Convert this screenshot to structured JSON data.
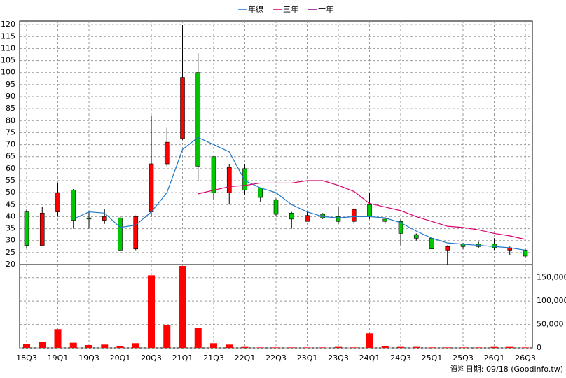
{
  "chart_data": [
    {
      "type": "candlestick",
      "categories": [
        "18Q3",
        null,
        "19Q1",
        null,
        "19Q3",
        null,
        "20Q1",
        null,
        "20Q3",
        null,
        "21Q1",
        null,
        "21Q3",
        null,
        "22Q1",
        null,
        "22Q3",
        null,
        "23Q1",
        null,
        "23Q3",
        null,
        "24Q1",
        null,
        "24Q3",
        null,
        "25Q1",
        null,
        "25Q3",
        null,
        "26Q1",
        null,
        "26Q3"
      ],
      "open": [
        42,
        28,
        42,
        51,
        39.5,
        38.5,
        39.5,
        26.5,
        42,
        62,
        72.5,
        100,
        65,
        50,
        60,
        52,
        47,
        41.5,
        38,
        41,
        40,
        38,
        45,
        39,
        38,
        32.5,
        31,
        26,
        28.5,
        28.5,
        28.5,
        26,
        26
      ],
      "high": [
        43,
        44,
        54,
        51.5,
        42,
        43,
        40,
        40.5,
        82,
        77,
        120,
        108,
        65,
        62,
        62,
        52,
        47.5,
        42,
        42,
        41.5,
        44,
        43.5,
        50,
        39.5,
        39,
        33,
        32,
        28,
        29,
        29.5,
        31,
        27.5,
        26.5
      ],
      "low": [
        27,
        28,
        40,
        35,
        35,
        37,
        21.5,
        26,
        40,
        61,
        72,
        55,
        47,
        45,
        49,
        46,
        40,
        35,
        38,
        39,
        37,
        37,
        39,
        37,
        28,
        30,
        26,
        20,
        26.5,
        27,
        26,
        24,
        23
      ],
      "close": [
        28,
        41.5,
        50,
        38.5,
        39,
        40,
        26,
        40,
        62,
        71,
        98,
        61,
        50,
        60.5,
        51,
        48,
        41,
        39,
        40.5,
        39.5,
        38,
        43,
        40,
        38,
        33,
        31,
        26.5,
        27.5,
        27.5,
        27.5,
        27,
        27,
        23.5
      ],
      "up_color": "#ff0000",
      "down_color": "#00c800",
      "series": [
        {
          "name": "年線",
          "color": "#1f78c8",
          "values": [
            null,
            null,
            null,
            39,
            42,
            41.5,
            35.5,
            36.5,
            42,
            50,
            68,
            73,
            70,
            67,
            55,
            52,
            50,
            45,
            42,
            40,
            39.5,
            40,
            40,
            39.5,
            37.5,
            34,
            31,
            29,
            28.5,
            28,
            27.5,
            27,
            26
          ]
        },
        {
          "name": "三年",
          "color": "#d6006e",
          "values": [
            null,
            null,
            null,
            null,
            null,
            null,
            null,
            null,
            null,
            null,
            null,
            49.5,
            51,
            52.5,
            53,
            54,
            54,
            54,
            55,
            55,
            53,
            50.5,
            45.5,
            44,
            42.5,
            40,
            38,
            36,
            35.5,
            34.5,
            33,
            32,
            30.5
          ]
        },
        {
          "name": "十年",
          "color": "#8b008b",
          "values": [
            null,
            null,
            null,
            null,
            null,
            null,
            null,
            null,
            null,
            null,
            null,
            null,
            null,
            null,
            null,
            null,
            null,
            null,
            null,
            null,
            null,
            null,
            null,
            null,
            null,
            null,
            null,
            null,
            null,
            null,
            null,
            null,
            null
          ]
        }
      ],
      "ylim": [
        20,
        121.5
      ],
      "yticks": [
        20,
        25,
        30,
        35,
        40,
        45,
        50,
        55,
        60,
        65,
        70,
        75,
        80,
        85,
        90,
        95,
        100,
        105,
        110,
        115,
        120
      ],
      "grid": true
    },
    {
      "type": "bar",
      "color": "#ff0000",
      "values": [
        8000,
        12000,
        40000,
        11000,
        6000,
        7000,
        4000,
        10000,
        155000,
        49000,
        175000,
        42000,
        10000,
        7000,
        2000,
        1000,
        1000,
        1000,
        1000,
        1000,
        2000,
        1000,
        31000,
        3000,
        2000,
        2000,
        1000,
        1000,
        1000,
        1000,
        2000,
        2000,
        1000
      ],
      "ylim": [
        0,
        178000
      ],
      "yticks": [
        0,
        {
          "value": 50000,
          "label": "50,000"
        },
        {
          "value": 100000,
          "label": "100,000"
        },
        {
          "value": 150000,
          "label": "150,000"
        }
      ],
      "grid": true,
      "annotation": "資料日期: 09/18  (Goodinfo.tw)"
    }
  ]
}
